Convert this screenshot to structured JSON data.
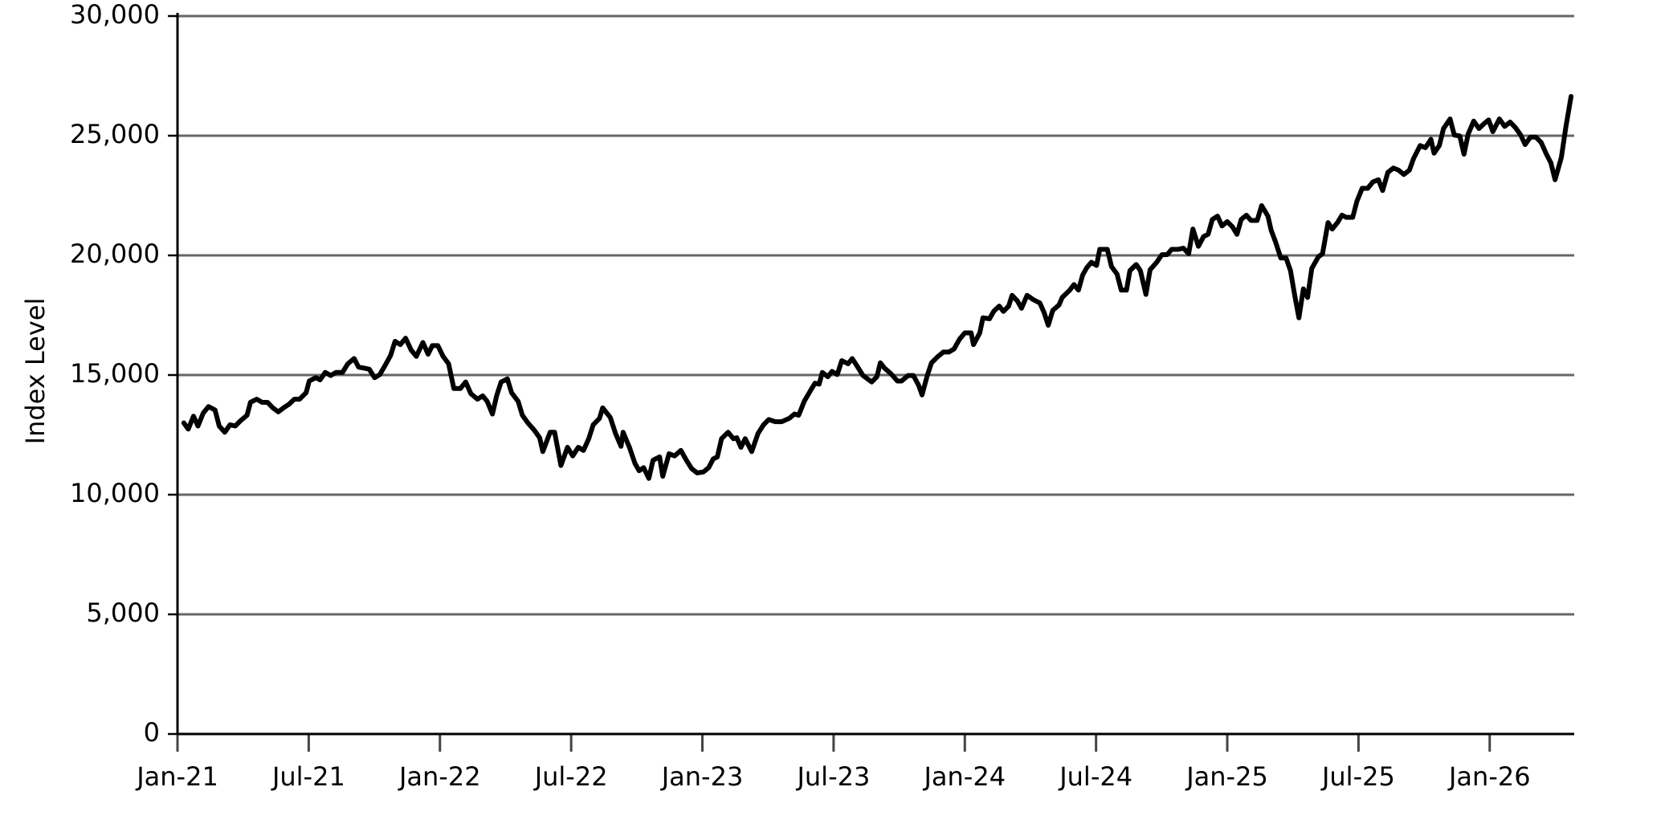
{
  "chart_data": {
    "type": "line",
    "ylabel": "Index Level",
    "color": "#000000",
    "grid": true,
    "xlim": [
      2021,
      2026.322
    ],
    "ylim": [
      0,
      30000
    ],
    "xticks": [
      {
        "value": 2021,
        "label": "Jan-21"
      },
      {
        "value": 2021.5,
        "label": "Jul-21"
      },
      {
        "value": 2022,
        "label": "Jan-22"
      },
      {
        "value": 2022.5,
        "label": "Jul-22"
      },
      {
        "value": 2023,
        "label": "Jan-23"
      },
      {
        "value": 2023.5,
        "label": "Jul-23"
      },
      {
        "value": 2024,
        "label": "Jan-24"
      },
      {
        "value": 2024.5,
        "label": "Jul-24"
      },
      {
        "value": 2025,
        "label": "Jan-25"
      },
      {
        "value": 2025.5,
        "label": "Jul-25"
      },
      {
        "value": 2026,
        "label": "Jan-26"
      }
    ],
    "yticks": [
      0,
      {
        "value": 5000,
        "label": "5,000"
      },
      {
        "value": 10000,
        "label": "10,000"
      },
      {
        "value": 15000,
        "label": "15,000"
      },
      {
        "value": 20000,
        "label": "20,000"
      },
      {
        "value": 25000,
        "label": "25,000"
      },
      {
        "value": 30000,
        "label": "30,000"
      }
    ],
    "x": [
      2021.024,
      2021.041,
      2021.061,
      2021.078,
      2021.098,
      2021.118,
      2021.143,
      2021.159,
      2021.18,
      2021.2,
      2021.22,
      2021.241,
      2021.265,
      2021.278,
      2021.302,
      2021.322,
      2021.343,
      2021.363,
      2021.384,
      2021.404,
      2021.424,
      2021.445,
      2021.465,
      2021.49,
      2021.502,
      2021.527,
      2021.543,
      2021.563,
      2021.584,
      2021.604,
      2021.629,
      2021.649,
      2021.673,
      2021.69,
      2021.71,
      2021.731,
      2021.751,
      2021.771,
      2021.792,
      2021.812,
      2021.829,
      2021.849,
      2021.869,
      2021.89,
      2021.91,
      2021.935,
      2021.955,
      2021.971,
      2021.992,
      2022.012,
      2022.033,
      2022.053,
      2022.078,
      2022.098,
      2022.118,
      2022.143,
      2022.163,
      2022.18,
      2022.2,
      2022.216,
      2022.233,
      2022.257,
      2022.273,
      2022.298,
      2022.314,
      2022.335,
      2022.359,
      2022.38,
      2022.392,
      2022.42,
      2022.437,
      2022.461,
      2022.486,
      2022.506,
      2022.527,
      2022.547,
      2022.567,
      2022.584,
      2022.608,
      2022.62,
      2022.649,
      2022.669,
      2022.69,
      2022.698,
      2022.722,
      2022.743,
      2022.759,
      2022.776,
      2022.796,
      2022.812,
      2022.837,
      2022.849,
      2022.873,
      2022.894,
      2022.918,
      2022.939,
      2022.959,
      2022.98,
      2023.004,
      2023.024,
      2023.041,
      2023.057,
      2023.073,
      2023.098,
      2023.118,
      2023.131,
      2023.147,
      2023.163,
      2023.188,
      2023.212,
      2023.233,
      2023.253,
      2023.278,
      2023.302,
      2023.331,
      2023.351,
      2023.367,
      2023.388,
      2023.412,
      2023.429,
      2023.445,
      2023.457,
      2023.478,
      2023.494,
      2023.514,
      2023.531,
      2023.555,
      2023.571,
      2023.592,
      2023.612,
      2023.645,
      2023.665,
      2023.678,
      2023.694,
      2023.718,
      2023.743,
      2023.759,
      2023.784,
      2023.804,
      2023.824,
      2023.837,
      2023.857,
      2023.873,
      2023.898,
      2023.918,
      2023.939,
      2023.959,
      2023.98,
      2024.0,
      2024.024,
      2024.033,
      2024.057,
      2024.069,
      2024.094,
      2024.11,
      2024.131,
      2024.147,
      2024.167,
      2024.18,
      2024.2,
      2024.216,
      2024.237,
      2024.261,
      2024.286,
      2024.302,
      2024.318,
      2024.335,
      2024.359,
      2024.371,
      2024.4,
      2024.416,
      2024.433,
      2024.449,
      2024.465,
      2024.482,
      2024.502,
      2024.514,
      2024.543,
      2024.559,
      2024.58,
      2024.596,
      2024.616,
      2024.629,
      2024.653,
      2024.669,
      2024.69,
      2024.706,
      2024.731,
      2024.751,
      2024.771,
      2024.788,
      2024.812,
      2024.833,
      2024.853,
      2024.869,
      2024.89,
      2024.91,
      2024.927,
      2024.943,
      2024.963,
      2024.98,
      2025.0,
      2025.02,
      2025.037,
      2025.053,
      2025.073,
      2025.09,
      2025.114,
      2025.131,
      2025.155,
      2025.167,
      2025.184,
      2025.204,
      2025.224,
      2025.241,
      2025.257,
      2025.273,
      2025.29,
      2025.306,
      2025.322,
      2025.347,
      2025.363,
      2025.384,
      2025.4,
      2025.42,
      2025.437,
      2025.453,
      2025.478,
      2025.494,
      2025.514,
      2025.535,
      2025.555,
      2025.576,
      2025.592,
      2025.612,
      2025.633,
      2025.653,
      2025.673,
      2025.694,
      2025.71,
      2025.735,
      2025.755,
      2025.776,
      2025.788,
      2025.808,
      2025.824,
      2025.849,
      2025.865,
      2025.886,
      2025.902,
      2025.918,
      2025.939,
      2025.959,
      2025.976,
      2025.996,
      2026.012,
      2026.037,
      2026.057,
      2026.078,
      2026.098,
      2026.118,
      2026.135,
      2026.155,
      2026.176,
      2026.196,
      2026.216,
      2026.233,
      2026.249,
      2026.273,
      2026.29,
      2026.31
    ],
    "values": [
      13000,
      12740,
      13280,
      12870,
      13410,
      13680,
      13540,
      12870,
      12610,
      12920,
      12870,
      13100,
      13320,
      13860,
      13990,
      13860,
      13860,
      13630,
      13460,
      13630,
      13770,
      13990,
      13990,
      14260,
      14750,
      14890,
      14800,
      15110,
      14980,
      15110,
      15110,
      15470,
      15690,
      15330,
      15290,
      15240,
      14890,
      15020,
      15420,
      15820,
      16410,
      16270,
      16540,
      16050,
      15780,
      16360,
      15870,
      16230,
      16230,
      15780,
      15470,
      14440,
      14440,
      14710,
      14220,
      13990,
      14130,
      13900,
      13370,
      14130,
      14710,
      14840,
      14260,
      13900,
      13320,
      13000,
      12700,
      12380,
      11800,
      12610,
      12610,
      11220,
      11980,
      11620,
      11980,
      11850,
      12340,
      12920,
      13190,
      13630,
      13230,
      12560,
      12020,
      12610,
      11980,
      11310,
      11000,
      11130,
      10680,
      11440,
      11580,
      10770,
      11710,
      11620,
      11850,
      11440,
      11090,
      10910,
      10950,
      11130,
      11490,
      11580,
      12340,
      12610,
      12340,
      12380,
      11980,
      12340,
      11800,
      12560,
      12920,
      13140,
      13050,
      13050,
      13190,
      13370,
      13320,
      13900,
      14350,
      14660,
      14620,
      15110,
      14930,
      15150,
      15020,
      15600,
      15470,
      15690,
      15330,
      14980,
      14710,
      14930,
      15510,
      15290,
      15060,
      14750,
      14750,
      14980,
      14980,
      14570,
      14170,
      14980,
      15510,
      15780,
      15960,
      15960,
      16090,
      16500,
      16760,
      16760,
      16270,
      16760,
      17390,
      17350,
      17660,
      17880,
      17660,
      17880,
      18330,
      18100,
      17790,
      18330,
      18150,
      18010,
      17610,
      17080,
      17700,
      17930,
      18240,
      18550,
      18780,
      18550,
      19180,
      19490,
      19710,
      19580,
      20250,
      20250,
      19530,
      19220,
      18550,
      18550,
      19360,
      19620,
      19360,
      18370,
      19400,
      19710,
      20030,
      20030,
      20250,
      20250,
      20300,
      20070,
      21100,
      20380,
      20790,
      20880,
      21500,
      21640,
      21230,
      21410,
      21190,
      20880,
      21500,
      21680,
      21460,
      21460,
      22080,
      21640,
      21060,
      20560,
      19890,
      19890,
      19360,
      18330,
      17390,
      18600,
      18240,
      19450,
      19940,
      20070,
      21370,
      21100,
      21370,
      21680,
      21590,
      21590,
      22260,
      22800,
      22800,
      23070,
      23160,
      22710,
      23470,
      23650,
      23560,
      23380,
      23560,
      24050,
      24590,
      24500,
      24850,
      24270,
      24590,
      25300,
      25700,
      25030,
      24990,
      24230,
      25070,
      25610,
      25300,
      25480,
      25660,
      25170,
      25700,
      25390,
      25570,
      25340,
      25030,
      24630,
      24940,
      24940,
      24720,
      24230,
      23870,
      23160,
      24090,
      25350,
      26640
    ]
  }
}
